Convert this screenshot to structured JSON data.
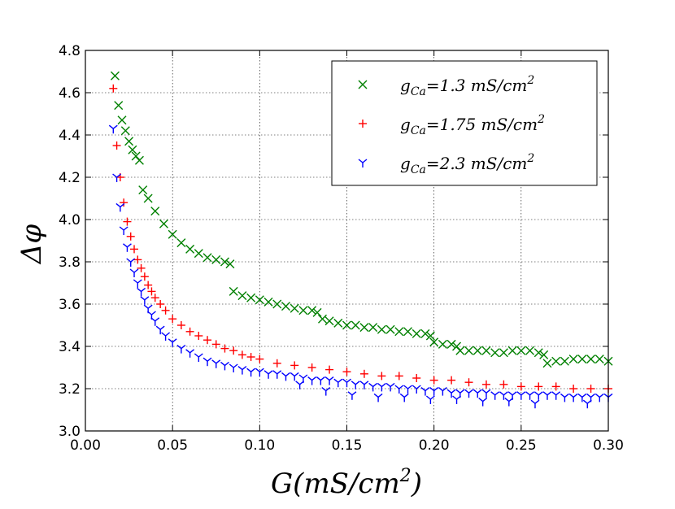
{
  "chart_data": {
    "type": "scatter",
    "title": "",
    "xlabel": "G(mS/cm²)",
    "ylabel": "Δφ",
    "xlim": [
      0.0,
      0.3
    ],
    "ylim": [
      3.0,
      4.8
    ],
    "grid": true,
    "legend_position": "top-right",
    "x_ticks": [
      "0.00",
      "0.05",
      "0.10",
      "0.15",
      "0.20",
      "0.25",
      "0.30"
    ],
    "y_ticks": [
      "3.0",
      "3.2",
      "3.4",
      "3.6",
      "3.8",
      "4.0",
      "4.2",
      "4.4",
      "4.6",
      "4.8"
    ],
    "series": [
      {
        "name": "g_Ca=1.3 mS/cm²",
        "legend": {
          "symbol": "g",
          "subscript": "Ca",
          "text": "=1.3 mS/cm",
          "sup": "2"
        },
        "marker": "x",
        "color": "#008000",
        "x": [
          0.017,
          0.019,
          0.021,
          0.023,
          0.025,
          0.027,
          0.029,
          0.031,
          0.033,
          0.036,
          0.04,
          0.045,
          0.05,
          0.055,
          0.06,
          0.065,
          0.07,
          0.075,
          0.08,
          0.083,
          0.085,
          0.09,
          0.095,
          0.1,
          0.105,
          0.11,
          0.115,
          0.12,
          0.125,
          0.13,
          0.133,
          0.136,
          0.14,
          0.145,
          0.15,
          0.155,
          0.16,
          0.165,
          0.17,
          0.175,
          0.18,
          0.185,
          0.19,
          0.195,
          0.198,
          0.2,
          0.205,
          0.21,
          0.213,
          0.215,
          0.22,
          0.225,
          0.23,
          0.235,
          0.24,
          0.245,
          0.25,
          0.255,
          0.26,
          0.263,
          0.265,
          0.27,
          0.275,
          0.28,
          0.285,
          0.29,
          0.295,
          0.3
        ],
        "values": [
          4.68,
          4.54,
          4.47,
          4.42,
          4.37,
          4.33,
          4.3,
          4.28,
          4.14,
          4.1,
          4.04,
          3.98,
          3.93,
          3.89,
          3.86,
          3.84,
          3.82,
          3.81,
          3.8,
          3.79,
          3.66,
          3.64,
          3.63,
          3.62,
          3.61,
          3.6,
          3.59,
          3.58,
          3.57,
          3.57,
          3.56,
          3.53,
          3.52,
          3.51,
          3.5,
          3.5,
          3.49,
          3.49,
          3.48,
          3.48,
          3.47,
          3.47,
          3.46,
          3.46,
          3.45,
          3.42,
          3.41,
          3.41,
          3.4,
          3.38,
          3.38,
          3.38,
          3.38,
          3.37,
          3.37,
          3.38,
          3.38,
          3.38,
          3.37,
          3.36,
          3.32,
          3.33,
          3.33,
          3.34,
          3.34,
          3.34,
          3.34,
          3.33
        ]
      },
      {
        "name": "g_Ca=1.75 mS/cm²",
        "legend": {
          "symbol": "g",
          "subscript": "Ca",
          "text": "=1.75 mS/cm",
          "sup": "2"
        },
        "marker": "+",
        "color": "#ff0000",
        "x": [
          0.016,
          0.018,
          0.02,
          0.022,
          0.024,
          0.026,
          0.028,
          0.03,
          0.032,
          0.034,
          0.036,
          0.038,
          0.04,
          0.043,
          0.046,
          0.05,
          0.055,
          0.06,
          0.065,
          0.07,
          0.075,
          0.08,
          0.085,
          0.09,
          0.095,
          0.1,
          0.11,
          0.12,
          0.13,
          0.14,
          0.15,
          0.16,
          0.17,
          0.18,
          0.19,
          0.2,
          0.21,
          0.22,
          0.23,
          0.24,
          0.25,
          0.26,
          0.27,
          0.28,
          0.29,
          0.3
        ],
        "values": [
          4.62,
          4.35,
          4.2,
          4.08,
          3.99,
          3.92,
          3.86,
          3.81,
          3.77,
          3.73,
          3.69,
          3.66,
          3.63,
          3.6,
          3.57,
          3.53,
          3.5,
          3.47,
          3.45,
          3.43,
          3.41,
          3.39,
          3.38,
          3.36,
          3.35,
          3.34,
          3.32,
          3.31,
          3.3,
          3.29,
          3.28,
          3.27,
          3.26,
          3.26,
          3.25,
          3.24,
          3.24,
          3.23,
          3.22,
          3.22,
          3.21,
          3.21,
          3.21,
          3.2,
          3.2,
          3.2
        ]
      },
      {
        "name": "g_Ca=2.3 mS/cm²",
        "legend": {
          "symbol": "g",
          "subscript": "Ca",
          "text": "=2.3 mS/cm",
          "sup": "2"
        },
        "marker": "tri_down",
        "color": "#0000ff",
        "x": [
          0.016,
          0.018,
          0.02,
          0.022,
          0.024,
          0.026,
          0.028,
          0.03,
          0.032,
          0.034,
          0.036,
          0.038,
          0.04,
          0.043,
          0.046,
          0.05,
          0.055,
          0.06,
          0.065,
          0.07,
          0.075,
          0.08,
          0.085,
          0.09,
          0.095,
          0.1,
          0.105,
          0.11,
          0.115,
          0.12,
          0.123,
          0.125,
          0.13,
          0.135,
          0.138,
          0.14,
          0.145,
          0.15,
          0.153,
          0.155,
          0.16,
          0.165,
          0.168,
          0.17,
          0.175,
          0.18,
          0.183,
          0.185,
          0.19,
          0.195,
          0.198,
          0.2,
          0.205,
          0.21,
          0.213,
          0.215,
          0.22,
          0.225,
          0.228,
          0.23,
          0.235,
          0.24,
          0.243,
          0.245,
          0.25,
          0.255,
          0.258,
          0.26,
          0.265,
          0.27,
          0.275,
          0.28,
          0.285,
          0.288,
          0.29,
          0.295,
          0.3
        ],
        "values": [
          4.43,
          4.2,
          4.06,
          3.95,
          3.87,
          3.8,
          3.75,
          3.7,
          3.66,
          3.62,
          3.58,
          3.55,
          3.52,
          3.48,
          3.45,
          3.42,
          3.39,
          3.37,
          3.35,
          3.33,
          3.32,
          3.31,
          3.3,
          3.29,
          3.28,
          3.28,
          3.27,
          3.27,
          3.26,
          3.26,
          3.22,
          3.25,
          3.24,
          3.24,
          3.19,
          3.24,
          3.23,
          3.23,
          3.17,
          3.22,
          3.22,
          3.21,
          3.16,
          3.21,
          3.21,
          3.2,
          3.16,
          3.2,
          3.2,
          3.19,
          3.15,
          3.19,
          3.19,
          3.18,
          3.15,
          3.18,
          3.18,
          3.18,
          3.14,
          3.18,
          3.17,
          3.17,
          3.14,
          3.17,
          3.17,
          3.17,
          3.13,
          3.17,
          3.17,
          3.17,
          3.16,
          3.16,
          3.16,
          3.13,
          3.16,
          3.16,
          3.16
        ]
      }
    ]
  }
}
